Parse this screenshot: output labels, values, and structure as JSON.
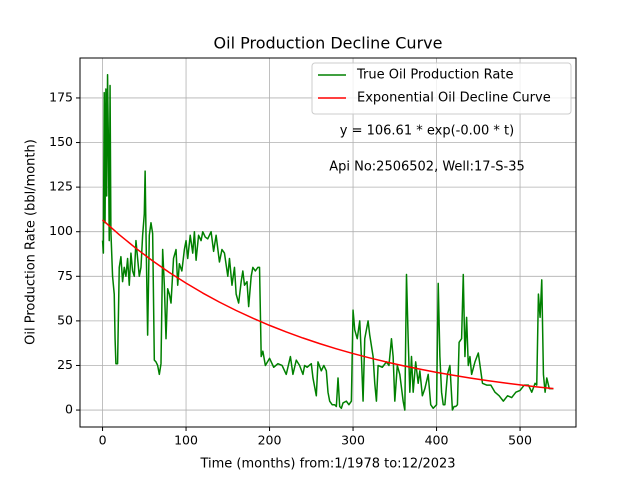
{
  "chart_data": {
    "type": "line",
    "title": "Oil Production Decline Curve",
    "xlabel": "Time (months) from:1/1978 to:12/2023",
    "ylabel": "Oil Production Rate (bbl/month)",
    "annotations": [
      "y = 106.61 * exp(-0.00 * t)",
      "Api No:2506502, Well:17-S-35"
    ],
    "xlim": [
      -27,
      567
    ],
    "ylim": [
      -9.5,
      197.4
    ],
    "xticks": [
      0,
      100,
      200,
      300,
      400,
      500
    ],
    "yticks": [
      0,
      25,
      50,
      75,
      100,
      125,
      150,
      175
    ],
    "grid": true,
    "legend": "upper right",
    "series": [
      {
        "name": "True Oil Production Rate",
        "color": "#008000",
        "x": [
          0,
          1,
          2,
          3,
          4,
          5,
          6,
          7,
          8,
          9,
          10,
          12,
          14,
          15,
          16,
          18,
          20,
          22,
          24,
          26,
          28,
          30,
          32,
          34,
          36,
          38,
          40,
          42,
          44,
          46,
          48,
          50,
          51,
          52,
          54,
          56,
          58,
          60,
          62,
          64,
          66,
          68,
          70,
          72,
          74,
          76,
          78,
          80,
          82,
          85,
          88,
          90,
          92,
          95,
          98,
          100,
          102,
          105,
          108,
          110,
          112,
          115,
          118,
          120,
          123,
          126,
          130,
          133,
          136,
          140,
          143,
          146,
          150,
          152,
          155,
          158,
          160,
          163,
          166,
          168,
          170,
          173,
          175,
          178,
          180,
          183,
          186,
          188,
          190,
          192,
          195,
          200,
          205,
          210,
          215,
          220,
          225,
          228,
          232,
          236,
          240,
          242,
          245,
          250,
          252,
          256,
          258,
          262,
          265,
          268,
          270,
          272,
          275,
          278,
          280,
          282,
          284,
          286,
          288,
          292,
          295,
          298,
          300,
          302,
          305,
          308,
          310,
          312,
          314,
          318,
          320,
          324,
          326,
          328,
          330,
          335,
          340,
          343,
          346,
          348,
          350,
          353,
          356,
          360,
          362,
          364,
          366,
          368,
          370,
          372,
          375,
          378,
          380,
          383,
          386,
          390,
          393,
          396,
          400,
          402,
          404,
          406,
          408,
          410,
          413,
          416,
          419,
          421,
          423,
          425,
          427,
          430,
          432,
          434,
          436,
          438,
          440,
          442,
          446,
          450,
          455,
          460,
          465,
          470,
          475,
          480,
          485,
          490,
          495,
          500,
          505,
          510,
          514,
          518,
          520,
          522,
          524,
          526,
          528,
          530,
          532,
          535,
          540
        ],
        "values": [
          95,
          88,
          178,
          105,
          180,
          120,
          188,
          150,
          95,
          182,
          100,
          75,
          65,
          40,
          26,
          26,
          80,
          86,
          72,
          80,
          75,
          85,
          70,
          88,
          78,
          75,
          95,
          85,
          75,
          80,
          98,
          110,
          134,
          100,
          42,
          98,
          105,
          99,
          28,
          27,
          25,
          20,
          26,
          90,
          70,
          40,
          68,
          65,
          60,
          85,
          90,
          70,
          82,
          78,
          90,
          95,
          85,
          98,
          88,
          100,
          84,
          98,
          95,
          100,
          97,
          96,
          100,
          89,
          98,
          83,
          90,
          88,
          75,
          85,
          70,
          80,
          65,
          60,
          72,
          78,
          70,
          72,
          58,
          75,
          80,
          78,
          80,
          80,
          30,
          33,
          25,
          29,
          24,
          26,
          25,
          20,
          30,
          20,
          28,
          25,
          20,
          25,
          24,
          26,
          18,
          8,
          27,
          22,
          25,
          22,
          10,
          5,
          3,
          3,
          2,
          18,
          2,
          1,
          4,
          5,
          3,
          5,
          56,
          45,
          40,
          50,
          30,
          5,
          40,
          50,
          42,
          30,
          15,
          5,
          25,
          24,
          27,
          25,
          40,
          30,
          5,
          25,
          20,
          5,
          0,
          76,
          40,
          10,
          30,
          10,
          27,
          15,
          22,
          8,
          12,
          20,
          3,
          1,
          3,
          71,
          30,
          10,
          3,
          3,
          20,
          25,
          0,
          2,
          2,
          3,
          38,
          40,
          76,
          30,
          52,
          25,
          30,
          20,
          27,
          32,
          15,
          14,
          14,
          10,
          8,
          5,
          8,
          7,
          10,
          11,
          14,
          14,
          10,
          15,
          14,
          65,
          52,
          73,
          20,
          10,
          18,
          12,
          12
        ]
      },
      {
        "name": "Exponential Oil Decline Curve",
        "color": "#ff0000",
        "x": [
          0,
          20,
          40,
          60,
          80,
          100,
          120,
          140,
          160,
          180,
          200,
          220,
          240,
          260,
          280,
          300,
          320,
          340,
          360,
          380,
          400,
          420,
          440,
          460,
          480,
          500,
          520,
          540
        ],
        "values": [
          106.61,
          98.33,
          90.69,
          83.64,
          77.14,
          71.15,
          65.62,
          60.52,
          55.82,
          51.48,
          47.48,
          43.79,
          40.39,
          37.25,
          34.36,
          31.69,
          29.23,
          26.96,
          24.86,
          22.93,
          21.15,
          19.5,
          17.99,
          16.59,
          15.3,
          14.11,
          13.02,
          12.01
        ]
      }
    ]
  }
}
